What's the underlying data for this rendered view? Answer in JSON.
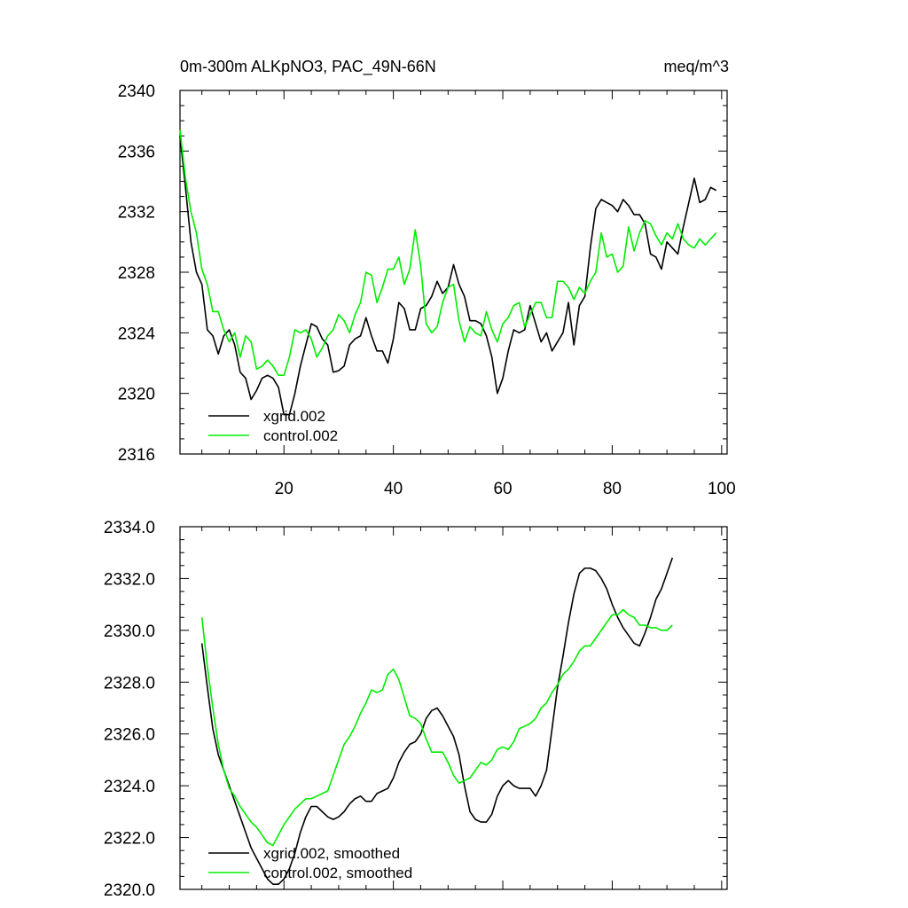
{
  "colors": {
    "xgrid": "#000000",
    "control": "#00ee00",
    "axis": "#000000",
    "background": "#ffffff"
  },
  "chart_data": [
    {
      "type": "line",
      "title": "0m-300m ALKpNO3, PAC_49N-66N",
      "units": "meq/m^3",
      "xlabel": "",
      "ylabel": "",
      "xlim": [
        1,
        101
      ],
      "ylim": [
        2316,
        2340
      ],
      "xticks": [
        "20",
        "40",
        "60",
        "80",
        "100"
      ],
      "yticks": [
        "2316",
        "2320",
        "2324",
        "2328",
        "2332",
        "2336",
        "2340"
      ],
      "legend": [
        "xgrid.002",
        "control.002"
      ],
      "legend_position": "bottom-left",
      "series": [
        {
          "name": "xgrid.002",
          "color": "#000000",
          "x_start": 1,
          "values": [
            2337.0,
            2333.6,
            2330.0,
            2328.0,
            2327.2,
            2324.2,
            2323.8,
            2322.6,
            2323.8,
            2324.2,
            2323.2,
            2321.4,
            2321.0,
            2319.6,
            2320.2,
            2321.0,
            2321.2,
            2321.0,
            2320.4,
            2318.6,
            2318.6,
            2320.0,
            2321.8,
            2323.2,
            2324.6,
            2324.4,
            2323.6,
            2323.2,
            2321.4,
            2321.5,
            2321.8,
            2323.2,
            2323.6,
            2323.8,
            2325.0,
            2323.8,
            2322.8,
            2322.8,
            2322.0,
            2323.6,
            2326.0,
            2325.6,
            2324.2,
            2324.2,
            2325.6,
            2325.8,
            2326.4,
            2327.4,
            2326.6,
            2327.0,
            2328.5,
            2327.2,
            2326.4,
            2324.8,
            2324.8,
            2324.6,
            2323.8,
            2322.4,
            2320.0,
            2321.0,
            2322.8,
            2324.2,
            2324.0,
            2324.2,
            2325.8,
            2324.6,
            2323.4,
            2324.0,
            2322.8,
            2323.4,
            2324.0,
            2326.0,
            2323.2,
            2325.8,
            2326.4,
            2329.6,
            2332.2,
            2332.8,
            2332.6,
            2332.4,
            2332.0,
            2332.8,
            2332.4,
            2331.8,
            2331.8,
            2331.2,
            2329.2,
            2329.0,
            2328.2,
            2330.0,
            2329.6,
            2329.2,
            2331.0,
            2332.6,
            2334.2,
            2332.6,
            2332.8,
            2333.6,
            2333.4
          ]
        },
        {
          "name": "control.002",
          "color": "#00ee00",
          "x_start": 1,
          "values": [
            2337.4,
            2334.2,
            2332.0,
            2330.6,
            2328.2,
            2327.2,
            2325.4,
            2325.4,
            2324.2,
            2323.4,
            2324.0,
            2322.4,
            2323.8,
            2323.4,
            2321.6,
            2321.8,
            2322.2,
            2321.8,
            2321.2,
            2321.2,
            2322.4,
            2324.2,
            2324.0,
            2324.2,
            2323.6,
            2322.4,
            2323.0,
            2323.8,
            2324.2,
            2325.2,
            2324.8,
            2324.0,
            2325.2,
            2326.0,
            2328.0,
            2327.8,
            2326.0,
            2327.0,
            2328.2,
            2328.2,
            2329.0,
            2327.2,
            2328.2,
            2330.8,
            2328.4,
            2324.6,
            2324.0,
            2324.4,
            2326.0,
            2327.0,
            2327.2,
            2324.8,
            2323.4,
            2324.4,
            2324.0,
            2323.8,
            2325.4,
            2324.2,
            2323.4,
            2324.6,
            2325.0,
            2325.8,
            2326.0,
            2324.4,
            2325.2,
            2326.0,
            2326.0,
            2325.0,
            2325.0,
            2327.4,
            2327.4,
            2327.0,
            2326.2,
            2327.0,
            2326.6,
            2327.4,
            2328.0,
            2330.6,
            2329.0,
            2329.2,
            2328.0,
            2328.4,
            2331.0,
            2329.4,
            2330.6,
            2331.4,
            2331.2,
            2330.4,
            2329.8,
            2330.6,
            2330.2,
            2331.2,
            2330.2,
            2329.8,
            2329.6,
            2330.2,
            2329.8,
            2330.2,
            2330.6
          ]
        }
      ]
    },
    {
      "type": "line",
      "title": "",
      "xlabel": "",
      "ylabel": "",
      "xlim": [
        1,
        101
      ],
      "ylim": [
        2320,
        2334
      ],
      "xticks": [],
      "yticks": [
        "2320.0",
        "2322.0",
        "2324.0",
        "2326.0",
        "2328.0",
        "2330.0",
        "2332.0",
        "2334.0"
      ],
      "legend": [
        "xgrid.002, smoothed",
        "control.002, smoothed"
      ],
      "legend_position": "bottom-left",
      "series": [
        {
          "name": "xgrid.002, smoothed",
          "color": "#000000",
          "x_start": 5,
          "values": [
            2329.5,
            2327.8,
            2326.2,
            2325.2,
            2324.6,
            2324.0,
            2323.4,
            2322.8,
            2322.2,
            2321.6,
            2321.2,
            2320.8,
            2320.4,
            2320.2,
            2320.2,
            2320.4,
            2320.8,
            2321.4,
            2322.2,
            2322.8,
            2323.2,
            2323.2,
            2323.0,
            2322.8,
            2322.7,
            2322.8,
            2323.0,
            2323.3,
            2323.5,
            2323.6,
            2323.4,
            2323.4,
            2323.7,
            2323.8,
            2323.9,
            2324.3,
            2324.9,
            2325.3,
            2325.6,
            2325.7,
            2326.0,
            2326.6,
            2326.9,
            2327.0,
            2326.7,
            2326.3,
            2325.9,
            2325.2,
            2324.0,
            2323.0,
            2322.7,
            2322.6,
            2322.6,
            2322.9,
            2323.6,
            2324.0,
            2324.2,
            2324.0,
            2323.9,
            2323.9,
            2323.9,
            2323.6,
            2324.0,
            2324.6,
            2326.2,
            2327.8,
            2329.0,
            2330.3,
            2331.4,
            2332.2,
            2332.4,
            2332.4,
            2332.3,
            2332.0,
            2331.6,
            2331.0,
            2330.5,
            2330.1,
            2329.8,
            2329.5,
            2329.4,
            2329.9,
            2330.5,
            2331.2,
            2331.6,
            2332.2,
            2332.8
          ]
        },
        {
          "name": "control.002, smoothed",
          "color": "#00ee00",
          "x_start": 5,
          "values": [
            2330.5,
            2328.6,
            2327.0,
            2325.6,
            2324.6,
            2323.9,
            2323.6,
            2323.2,
            2322.9,
            2322.6,
            2322.4,
            2322.1,
            2321.8,
            2321.7,
            2322.1,
            2322.5,
            2322.8,
            2323.1,
            2323.3,
            2323.5,
            2323.5,
            2323.6,
            2323.7,
            2323.8,
            2324.4,
            2325.0,
            2325.6,
            2325.9,
            2326.3,
            2326.8,
            2327.2,
            2327.7,
            2327.6,
            2327.7,
            2328.3,
            2328.5,
            2328.1,
            2327.4,
            2326.7,
            2326.6,
            2326.4,
            2325.8,
            2325.3,
            2325.3,
            2325.3,
            2324.9,
            2324.4,
            2324.1,
            2324.2,
            2324.3,
            2324.6,
            2324.9,
            2324.8,
            2325.0,
            2325.4,
            2325.5,
            2325.4,
            2325.7,
            2326.2,
            2326.3,
            2326.4,
            2326.6,
            2327.0,
            2327.2,
            2327.6,
            2327.9,
            2328.3,
            2328.5,
            2328.8,
            2329.2,
            2329.4,
            2329.4,
            2329.7,
            2330.0,
            2330.3,
            2330.6,
            2330.6,
            2330.8,
            2330.6,
            2330.5,
            2330.2,
            2330.2,
            2330.1,
            2330.1,
            2330.0,
            2330.0,
            2330.2
          ]
        }
      ]
    }
  ]
}
